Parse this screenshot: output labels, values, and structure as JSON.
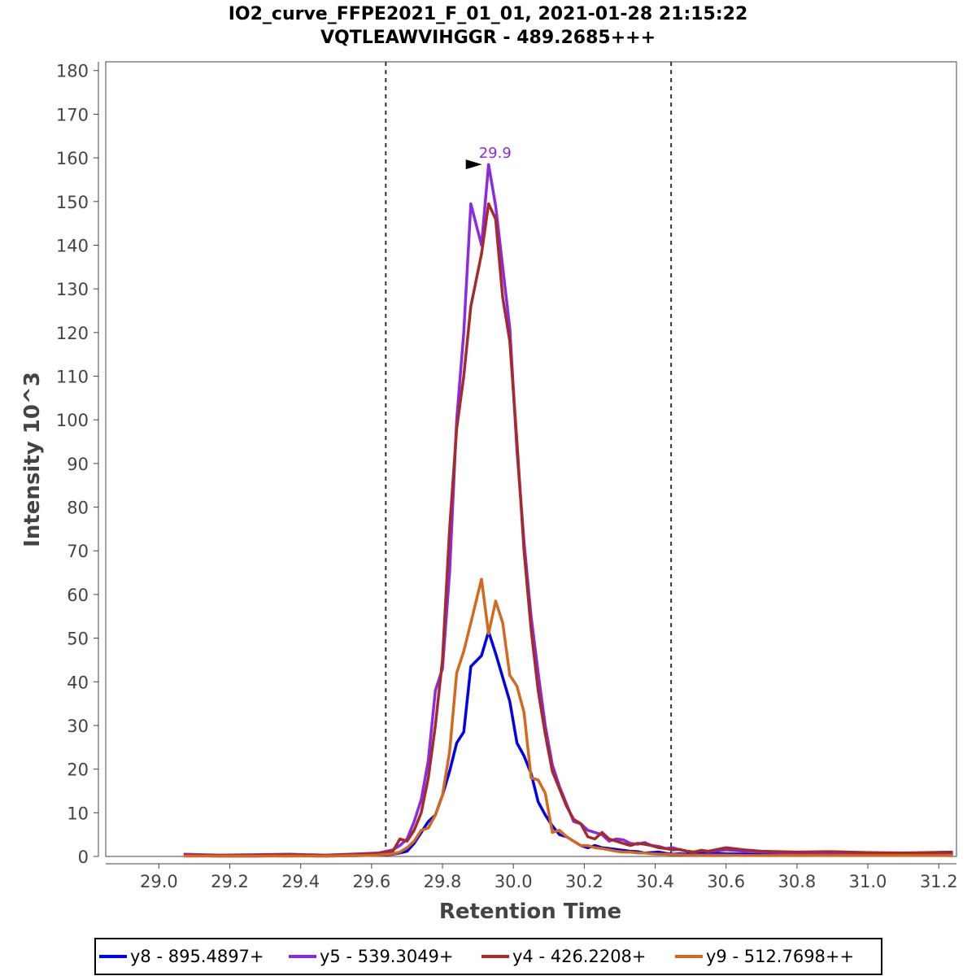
{
  "chart_data": {
    "type": "line",
    "title": "IO2_curve_FFPE2021_F_01_01, 2021-01-28 21:15:22",
    "subtitle": "VQTLEAWVIHGGR - 489.2685+++",
    "xlabel": "Retention Time",
    "ylabel": "Intensity 10^3",
    "xlim": [
      28.85,
      31.25
    ],
    "ylim": [
      0,
      182
    ],
    "x_ticks": [
      "29.0",
      "29.2",
      "29.4",
      "29.6",
      "29.8",
      "30.0",
      "30.2",
      "30.4",
      "30.6",
      "30.8",
      "31.0",
      "31.2"
    ],
    "y_ticks": [
      "0",
      "10",
      "20",
      "30",
      "40",
      "50",
      "60",
      "70",
      "80",
      "90",
      "100",
      "110",
      "120",
      "130",
      "140",
      "150",
      "160",
      "170",
      "180"
    ],
    "integration_bounds": [
      29.64,
      30.445
    ],
    "peak_annotation": {
      "label": "29.9",
      "x": 29.93,
      "y": 158.5,
      "color": "#8a2be2"
    },
    "legend_position": "bottom",
    "series": [
      {
        "name": "y8 - 895.4897+",
        "color": "#0000ee",
        "x": [
          29.07,
          29.17,
          29.27,
          29.37,
          29.47,
          29.57,
          29.62,
          29.66,
          29.68,
          29.7,
          29.72,
          29.74,
          29.76,
          29.78,
          29.8,
          29.82,
          29.84,
          29.86,
          29.88,
          29.91,
          29.93,
          29.95,
          29.97,
          29.99,
          30.01,
          30.03,
          30.05,
          30.07,
          30.09,
          30.11,
          30.13,
          30.15,
          30.17,
          30.19,
          30.21,
          30.23,
          30.25,
          30.27,
          30.29,
          30.31,
          30.33,
          30.35,
          30.37,
          30.39,
          30.41,
          30.43,
          30.45,
          30.47,
          30.49,
          30.51,
          30.53,
          30.55,
          30.6,
          30.65,
          30.7,
          30.8,
          30.9,
          31.0,
          31.1,
          31.24
        ],
        "values": [
          0.2,
          0.1,
          0.1,
          0.2,
          0.1,
          0.2,
          0.3,
          0.5,
          0.8,
          1.2,
          3.0,
          5.5,
          8.0,
          9.5,
          14.0,
          19.5,
          26.0,
          28.5,
          43.5,
          46.0,
          51.5,
          46.5,
          41.0,
          35.5,
          26.0,
          23.0,
          19.0,
          12.5,
          9.5,
          7.0,
          5.0,
          4.5,
          3.5,
          2.5,
          2.0,
          2.5,
          2.0,
          1.8,
          1.6,
          1.4,
          1.2,
          1.1,
          0.8,
          0.9,
          1.0,
          0.7,
          0.5,
          0.6,
          0.5,
          0.5,
          0.7,
          0.8,
          0.6,
          0.5,
          0.4,
          0.3,
          0.3,
          0.3,
          0.3,
          0.2
        ]
      },
      {
        "name": "y5 - 539.3049+",
        "color": "#8a2be2",
        "x": [
          29.07,
          29.17,
          29.27,
          29.37,
          29.47,
          29.57,
          29.62,
          29.66,
          29.68,
          29.7,
          29.72,
          29.74,
          29.76,
          29.78,
          29.8,
          29.82,
          29.84,
          29.86,
          29.88,
          29.91,
          29.93,
          29.95,
          29.97,
          29.99,
          30.01,
          30.03,
          30.05,
          30.07,
          30.09,
          30.11,
          30.13,
          30.15,
          30.17,
          30.19,
          30.21,
          30.23,
          30.25,
          30.27,
          30.29,
          30.31,
          30.33,
          30.35,
          30.37,
          30.39,
          30.41,
          30.43,
          30.45,
          30.47,
          30.49,
          30.51,
          30.53,
          30.55,
          30.6,
          30.65,
          30.7,
          30.8,
          30.9,
          31.0,
          31.1,
          31.24
        ],
        "values": [
          0.5,
          0.3,
          0.4,
          0.5,
          0.3,
          0.6,
          0.8,
          1.5,
          2.5,
          4.0,
          8.0,
          13.0,
          22.0,
          38.0,
          43.0,
          65.0,
          100.0,
          120.0,
          149.5,
          140.0,
          158.5,
          149.0,
          135.0,
          121.0,
          93.0,
          72.0,
          55.0,
          42.0,
          30.0,
          21.0,
          16.0,
          12.0,
          8.0,
          7.5,
          6.0,
          5.5,
          5.0,
          3.5,
          4.0,
          3.8,
          3.0,
          2.8,
          3.2,
          2.5,
          2.3,
          1.8,
          2.0,
          1.5,
          1.2,
          1.0,
          1.3,
          1.1,
          1.5,
          1.2,
          1.0,
          0.8,
          0.9,
          0.7,
          0.8,
          0.6
        ]
      },
      {
        "name": "y4 - 426.2208+",
        "color": "#a52a2a",
        "x": [
          29.07,
          29.17,
          29.27,
          29.37,
          29.47,
          29.57,
          29.62,
          29.66,
          29.68,
          29.7,
          29.72,
          29.74,
          29.76,
          29.78,
          29.8,
          29.82,
          29.84,
          29.86,
          29.88,
          29.91,
          29.93,
          29.95,
          29.97,
          29.99,
          30.01,
          30.03,
          30.05,
          30.07,
          30.09,
          30.11,
          30.13,
          30.15,
          30.17,
          30.19,
          30.21,
          30.23,
          30.25,
          30.27,
          30.29,
          30.31,
          30.33,
          30.35,
          30.37,
          30.39,
          30.41,
          30.43,
          30.45,
          30.47,
          30.49,
          30.51,
          30.53,
          30.55,
          30.6,
          30.65,
          30.7,
          30.8,
          30.9,
          31.0,
          31.1,
          31.24
        ],
        "values": [
          0.3,
          0.2,
          0.3,
          0.4,
          0.2,
          0.5,
          0.7,
          1.2,
          4.0,
          3.5,
          6.0,
          10.0,
          18.0,
          30.0,
          45.0,
          75.0,
          98.0,
          110.0,
          126.0,
          138.0,
          149.5,
          146.0,
          128.0,
          118.0,
          95.0,
          70.0,
          52.0,
          38.0,
          28.0,
          19.5,
          15.5,
          11.5,
          8.5,
          7.5,
          4.5,
          4.0,
          5.5,
          4.0,
          3.5,
          3.0,
          2.5,
          3.0,
          2.8,
          2.5,
          2.0,
          1.8,
          1.5,
          1.6,
          1.2,
          1.0,
          1.4,
          1.2,
          2.0,
          1.5,
          1.2,
          1.0,
          1.1,
          0.9,
          0.8,
          1.0
        ]
      },
      {
        "name": "y9 - 512.7698++",
        "color": "#d2691e",
        "x": [
          29.07,
          29.17,
          29.27,
          29.37,
          29.47,
          29.57,
          29.62,
          29.66,
          29.68,
          29.7,
          29.72,
          29.74,
          29.76,
          29.78,
          29.8,
          29.82,
          29.84,
          29.86,
          29.88,
          29.91,
          29.93,
          29.95,
          29.97,
          29.99,
          30.01,
          30.03,
          30.05,
          30.07,
          30.09,
          30.11,
          30.13,
          30.15,
          30.17,
          30.19,
          30.21,
          30.23,
          30.25,
          30.27,
          30.29,
          30.31,
          30.33,
          30.35,
          30.37,
          30.39,
          30.41,
          30.43,
          30.45,
          30.47,
          30.49,
          30.51,
          30.53,
          30.55,
          30.6,
          30.65,
          30.7,
          30.8,
          30.9,
          31.0,
          31.1,
          31.24
        ],
        "values": [
          0.1,
          0.1,
          0.1,
          0.1,
          0.1,
          0.2,
          0.3,
          0.6,
          1.0,
          2.0,
          3.5,
          6.0,
          6.5,
          9.5,
          14.0,
          24.0,
          42.0,
          47.0,
          53.5,
          63.5,
          51.0,
          58.5,
          53.5,
          41.5,
          39.0,
          33.0,
          18.0,
          17.5,
          14.5,
          5.5,
          6.0,
          4.5,
          3.5,
          2.5,
          2.5,
          2.0,
          1.8,
          1.5,
          1.2,
          1.0,
          1.0,
          0.8,
          0.8,
          0.6,
          0.5,
          0.5,
          0.4,
          0.4,
          0.3,
          0.3,
          0.3,
          0.3,
          0.3,
          0.2,
          0.2,
          0.2,
          0.2,
          0.2,
          0.2,
          0.2
        ]
      }
    ]
  }
}
